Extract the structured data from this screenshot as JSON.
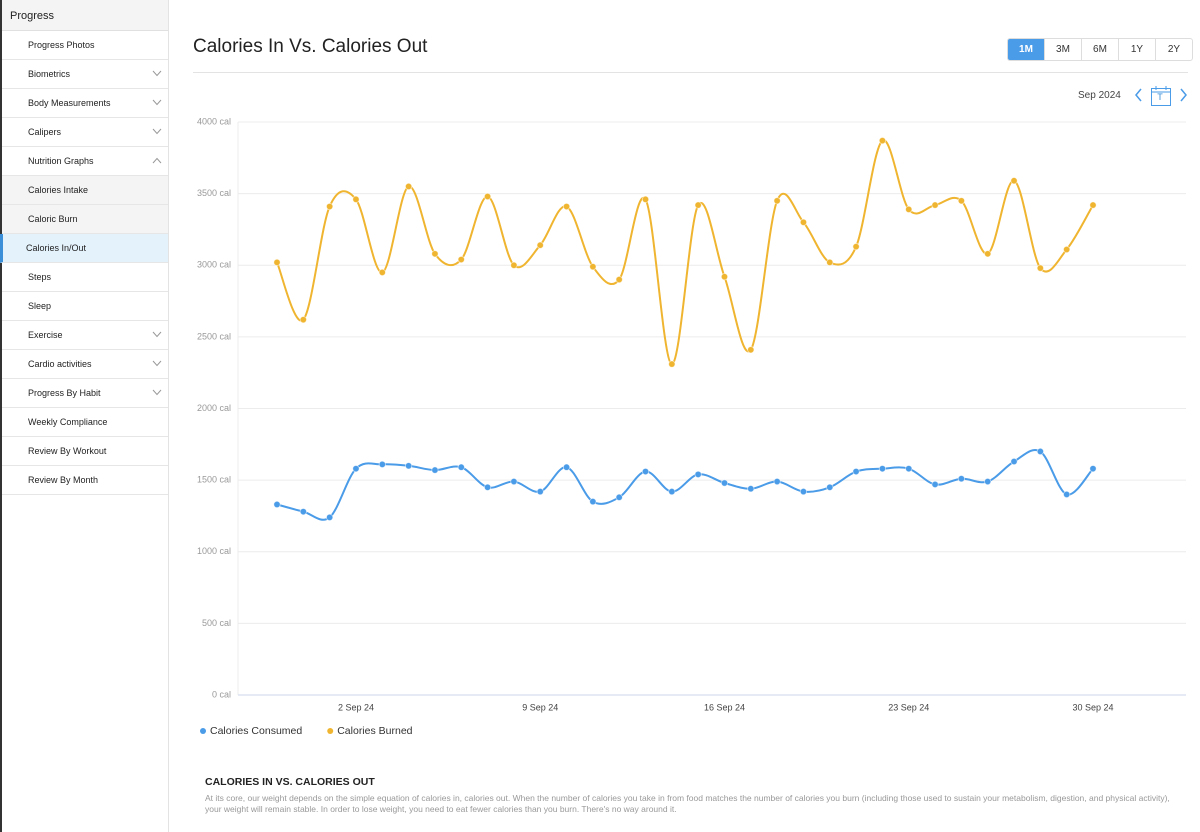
{
  "sidebar": {
    "title": "Progress",
    "items": [
      {
        "label": "Progress Photos"
      },
      {
        "label": "Biometrics",
        "expand": "down"
      },
      {
        "label": "Body Measurements",
        "expand": "down"
      },
      {
        "label": "Calipers",
        "expand": "down"
      },
      {
        "label": "Nutrition Graphs",
        "expand": "up"
      },
      {
        "label": "Calories Intake",
        "sub": true
      },
      {
        "label": "Caloric Burn",
        "sub": true
      },
      {
        "label": "Calories In/Out",
        "sub": true,
        "selected": true
      },
      {
        "label": "Steps"
      },
      {
        "label": "Sleep"
      },
      {
        "label": "Exercise",
        "expand": "down"
      },
      {
        "label": "Cardio activities",
        "expand": "down"
      },
      {
        "label": "Progress By Habit",
        "expand": "down"
      },
      {
        "label": "Weekly Compliance"
      },
      {
        "label": "Review By Workout"
      },
      {
        "label": "Review By Month"
      }
    ]
  },
  "header": {
    "title": "Calories In Vs. Calories Out",
    "ranges": [
      {
        "label": "1M",
        "selected": true
      },
      {
        "label": "3M"
      },
      {
        "label": "6M"
      },
      {
        "label": "1Y"
      },
      {
        "label": "2Y"
      }
    ]
  },
  "period": {
    "label": "Sep 2024",
    "calendar_icon": "T"
  },
  "chart_data": {
    "type": "line",
    "categories": [
      null,
      null,
      null,
      "2 Sep 24",
      null,
      null,
      null,
      null,
      null,
      null,
      "9 Sep 24",
      null,
      null,
      null,
      null,
      null,
      null,
      "16 Sep 24",
      null,
      null,
      null,
      null,
      null,
      null,
      "23 Sep 24",
      null,
      null,
      null,
      null,
      null,
      null,
      "30 Sep 24"
    ],
    "series": [
      {
        "name": "Calories Consumed",
        "color": "#4a9be8",
        "values": [
          1330,
          1280,
          1240,
          1580,
          1610,
          1600,
          1570,
          1590,
          1450,
          1490,
          1420,
          1590,
          1350,
          1380,
          1560,
          1420,
          1540,
          1480,
          1440,
          1490,
          1420,
          1450,
          1560,
          1580,
          1580,
          1470,
          1510,
          1490,
          1630,
          1700,
          1400,
          1580
        ]
      },
      {
        "name": "Calories Burned",
        "color": "#f0b530",
        "values": [
          3020,
          2620,
          3410,
          3460,
          2950,
          3550,
          3080,
          3040,
          3480,
          3000,
          3140,
          3410,
          2990,
          2900,
          3460,
          2310,
          3420,
          2920,
          2410,
          3450,
          3300,
          3020,
          3130,
          3870,
          3390,
          3420,
          3450,
          3080,
          3590,
          2980,
          3110,
          3420
        ]
      }
    ],
    "ylim": [
      0,
      4000
    ],
    "yticks": [
      {
        "value": 0,
        "label": "0 cal"
      },
      {
        "value": 500,
        "label": "500 cal"
      },
      {
        "value": 1000,
        "label": "1000 cal"
      },
      {
        "value": 1500,
        "label": "1500 cal"
      },
      {
        "value": 2000,
        "label": "2000 cal"
      },
      {
        "value": 2500,
        "label": "2500 cal"
      },
      {
        "value": 3000,
        "label": "3000 cal"
      },
      {
        "value": 3500,
        "label": "3500 cal"
      },
      {
        "value": 4000,
        "label": "4000 cal"
      }
    ],
    "grid": true,
    "legend": "bottom-left",
    "smooth": true
  },
  "description": {
    "title": "CALORIES IN VS. CALORIES OUT",
    "text": "At its core, our weight depends on the simple equation of calories in, calories out. When the number of calories you take in from food matches the number of calories you burn (including those used to sustain your metabolism, digestion, and physical activity), your weight will remain stable. In order to lose weight, you need to eat fewer calories than you burn. There's no way around it."
  }
}
